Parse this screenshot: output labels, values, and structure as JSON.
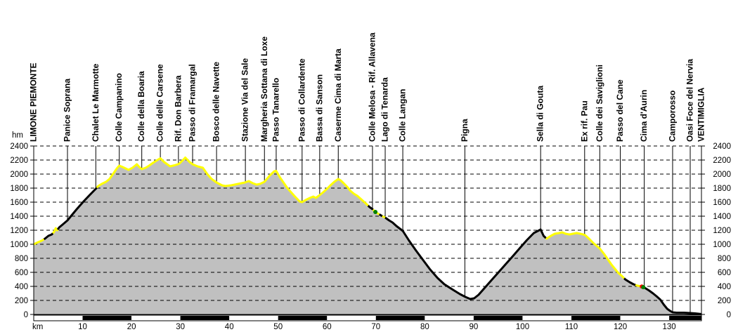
{
  "page": {
    "background": "#ffffff"
  },
  "chart_data": {
    "type": "area",
    "title": "",
    "xlabel": "km",
    "ylabel": "hm",
    "xlim": [
      0,
      136.6
    ],
    "ylim": [
      0,
      2400
    ],
    "yticks": [
      0,
      200,
      400,
      600,
      800,
      1000,
      1200,
      1400,
      1600,
      1800,
      2000,
      2200,
      2400
    ],
    "xticks": [
      10,
      20,
      30,
      40,
      50,
      60,
      70,
      80,
      90,
      100,
      110,
      120,
      130
    ],
    "grid": "horizontal-dashed-over-fill",
    "legend": "none",
    "area_fill": "#c0c0c0",
    "axis_color": "#000000",
    "surface_colors": {
      "unpaved": "#ffff00",
      "paved": "#000000"
    },
    "marker_colors": {
      "green": "#008000",
      "red": "#ff0000"
    },
    "scalebar": {
      "interval_km": 10,
      "even_color": "#ffffff",
      "odd_color": "#000000"
    },
    "waypoints": [
      {
        "label": "LIMONE PIEMONTE",
        "km": 0
      },
      {
        "label": "Panice Soprana",
        "km": 6.9
      },
      {
        "label": "Chalet Le Marmotte",
        "km": 12.7
      },
      {
        "label": "Colle Campanino",
        "km": 17.5
      },
      {
        "label": "Colle della Boaria",
        "km": 22.1
      },
      {
        "label": "Colle delle Carsene",
        "km": 25.9
      },
      {
        "label": "Rif. Don Barbera",
        "km": 29.6
      },
      {
        "label": "Passo di Framargal",
        "km": 32.5
      },
      {
        "label": "Bosco delle Navette",
        "km": 37.4
      },
      {
        "label": "Stazione Via del Sale",
        "km": 43.3
      },
      {
        "label": "Margheria Sottana di Loxe",
        "km": 47.2
      },
      {
        "label": "Passo Tanarello",
        "km": 49.6
      },
      {
        "label": "Passo di Collardente",
        "km": 54.9
      },
      {
        "label": "Bassa di Sanson",
        "km": 58.5
      },
      {
        "label": "Caserme Cima di Marta",
        "km": 62.3
      },
      {
        "label": "Colle Melosa - Rif. Allavena",
        "km": 69.3
      },
      {
        "label": "Lago di Tenarda",
        "km": 71.9
      },
      {
        "label": "Colle Langan",
        "km": 75.5
      },
      {
        "label": "Pigna",
        "km": 88.2
      },
      {
        "label": "Sella di Gouta",
        "km": 103.7
      },
      {
        "label": "Ex rif. Pau",
        "km": 112.7
      },
      {
        "label": "Colle dei Saviglioni",
        "km": 115.8
      },
      {
        "label": "Passo del Cane",
        "km": 120.0
      },
      {
        "label": "Cima d'Aurin",
        "km": 124.9
      },
      {
        "label": "Camporosso",
        "km": 130.7
      },
      {
        "label": "Oasi Foce del Nervia",
        "km": 134.3
      },
      {
        "label": "VENTIMIGLIA",
        "km": 136.6
      }
    ],
    "profile": [
      [
        0,
        1000
      ],
      [
        0.9,
        1030
      ],
      [
        1.6,
        1050
      ],
      [
        2.3,
        1080
      ],
      [
        3.0,
        1120
      ],
      [
        3.7,
        1140
      ],
      [
        4.2,
        1180
      ],
      [
        4.5,
        1230
      ],
      [
        4.8,
        1200
      ],
      [
        5.2,
        1240
      ],
      [
        5.9,
        1280
      ],
      [
        6.9,
        1340
      ],
      [
        7.6,
        1400
      ],
      [
        8.8,
        1500
      ],
      [
        10.2,
        1610
      ],
      [
        11.7,
        1720
      ],
      [
        12.7,
        1790
      ],
      [
        13.2,
        1830
      ],
      [
        13.9,
        1860
      ],
      [
        14.8,
        1890
      ],
      [
        15.5,
        1930
      ],
      [
        16.3,
        2010
      ],
      [
        17.0,
        2080
      ],
      [
        17.5,
        2120
      ],
      [
        18.2,
        2100
      ],
      [
        19.4,
        2060
      ],
      [
        20.2,
        2090
      ],
      [
        21.1,
        2140
      ],
      [
        21.6,
        2100
      ],
      [
        22.1,
        2070
      ],
      [
        22.9,
        2090
      ],
      [
        23.6,
        2120
      ],
      [
        24.4,
        2160
      ],
      [
        25.3,
        2200
      ],
      [
        25.9,
        2225
      ],
      [
        26.7,
        2170
      ],
      [
        27.9,
        2110
      ],
      [
        28.8,
        2125
      ],
      [
        29.7,
        2145
      ],
      [
        30.4,
        2190
      ],
      [
        31.0,
        2235
      ],
      [
        31.9,
        2170
      ],
      [
        32.5,
        2140
      ],
      [
        33.5,
        2110
      ],
      [
        34.6,
        2090
      ],
      [
        35.5,
        2000
      ],
      [
        36.4,
        1930
      ],
      [
        37.4,
        1880
      ],
      [
        38.5,
        1840
      ],
      [
        39.2,
        1830
      ],
      [
        40.4,
        1840
      ],
      [
        41.8,
        1860
      ],
      [
        43.2,
        1880
      ],
      [
        44.0,
        1900
      ],
      [
        44.8,
        1870
      ],
      [
        45.6,
        1850
      ],
      [
        46.3,
        1860
      ],
      [
        47.2,
        1890
      ],
      [
        48.3,
        1980
      ],
      [
        49.2,
        2040
      ],
      [
        49.6,
        2045
      ],
      [
        50.4,
        1950
      ],
      [
        51.9,
        1800
      ],
      [
        53.3,
        1690
      ],
      [
        54.4,
        1610
      ],
      [
        54.9,
        1600
      ],
      [
        55.6,
        1630
      ],
      [
        56.5,
        1660
      ],
      [
        57.2,
        1680
      ],
      [
        57.7,
        1660
      ],
      [
        58.5,
        1700
      ],
      [
        59.2,
        1740
      ],
      [
        60.0,
        1790
      ],
      [
        60.7,
        1840
      ],
      [
        61.5,
        1890
      ],
      [
        62.3,
        1930
      ],
      [
        62.8,
        1910
      ],
      [
        63.4,
        1870
      ],
      [
        64.1,
        1820
      ],
      [
        64.8,
        1760
      ],
      [
        65.5,
        1720
      ],
      [
        66.2,
        1690
      ],
      [
        67.0,
        1640
      ],
      [
        67.8,
        1590
      ],
      [
        68.7,
        1530
      ],
      [
        69.3,
        1500
      ],
      [
        69.9,
        1460
      ],
      [
        70.6,
        1430
      ],
      [
        71.3,
        1400
      ],
      [
        71.9,
        1380
      ],
      [
        72.7,
        1340
      ],
      [
        73.4,
        1310
      ],
      [
        74.2,
        1260
      ],
      [
        75.5,
        1190
      ],
      [
        76.8,
        1050
      ],
      [
        78.2,
        910
      ],
      [
        79.7,
        770
      ],
      [
        81.1,
        640
      ],
      [
        82.6,
        520
      ],
      [
        84.0,
        430
      ],
      [
        85.8,
        350
      ],
      [
        87.2,
        290
      ],
      [
        88.3,
        250
      ],
      [
        89.3,
        220
      ],
      [
        90.1,
        230
      ],
      [
        91.0,
        280
      ],
      [
        92.4,
        390
      ],
      [
        93.8,
        500
      ],
      [
        95.2,
        610
      ],
      [
        96.6,
        720
      ],
      [
        98.0,
        830
      ],
      [
        99.5,
        950
      ],
      [
        100.9,
        1060
      ],
      [
        102.3,
        1160
      ],
      [
        103.7,
        1210
      ],
      [
        104.3,
        1120
      ],
      [
        104.9,
        1080
      ],
      [
        105.8,
        1120
      ],
      [
        106.6,
        1150
      ],
      [
        107.5,
        1160
      ],
      [
        108.1,
        1170
      ],
      [
        108.8,
        1150
      ],
      [
        109.6,
        1140
      ],
      [
        110.3,
        1150
      ],
      [
        111.1,
        1160
      ],
      [
        111.8,
        1150
      ],
      [
        112.4,
        1140
      ],
      [
        112.8,
        1130
      ],
      [
        113.6,
        1080
      ],
      [
        114.6,
        1010
      ],
      [
        115.8,
        940
      ],
      [
        116.7,
        860
      ],
      [
        117.5,
        780
      ],
      [
        118.2,
        710
      ],
      [
        118.9,
        650
      ],
      [
        119.6,
        590
      ],
      [
        120.3,
        550
      ],
      [
        121.0,
        500
      ],
      [
        121.9,
        460
      ],
      [
        122.7,
        430
      ],
      [
        123.5,
        410
      ],
      [
        124.3,
        400
      ],
      [
        125.0,
        380
      ],
      [
        125.9,
        340
      ],
      [
        126.7,
        300
      ],
      [
        127.4,
        260
      ],
      [
        128.2,
        210
      ],
      [
        128.9,
        140
      ],
      [
        129.6,
        80
      ],
      [
        130.2,
        50
      ],
      [
        130.7,
        30
      ],
      [
        131.5,
        25
      ],
      [
        133.0,
        25
      ],
      [
        134.3,
        20
      ],
      [
        135.3,
        15
      ],
      [
        136.0,
        10
      ],
      [
        136.6,
        5
      ]
    ],
    "surface_segments": [
      {
        "from": 0,
        "to": 2.1,
        "surface": "unpaved"
      },
      {
        "from": 2.1,
        "to": 3.9,
        "surface": "paved"
      },
      {
        "from": 3.9,
        "to": 4.9,
        "surface": "unpaved"
      },
      {
        "from": 4.9,
        "to": 12.9,
        "surface": "paved"
      },
      {
        "from": 12.9,
        "to": 68.4,
        "surface": "unpaved"
      },
      {
        "from": 68.4,
        "to": 69.4,
        "surface": "paved"
      },
      {
        "from": 69.4,
        "to": 70.7,
        "surface": "unpaved"
      },
      {
        "from": 70.7,
        "to": 71.3,
        "surface": "paved"
      },
      {
        "from": 71.3,
        "to": 71.9,
        "surface": "unpaved"
      },
      {
        "from": 71.9,
        "to": 104.8,
        "surface": "paved"
      },
      {
        "from": 104.8,
        "to": 120.8,
        "surface": "unpaved"
      },
      {
        "from": 120.8,
        "to": 123.1,
        "surface": "paved"
      },
      {
        "from": 123.1,
        "to": 124.2,
        "surface": "unpaved"
      },
      {
        "from": 124.2,
        "to": 136.6,
        "surface": "paved"
      }
    ],
    "markers": [
      {
        "km": 69.9,
        "color": "#008000"
      },
      {
        "km": 124.4,
        "color": "#ff0000"
      },
      {
        "km": 124.7,
        "color": "#008000"
      }
    ]
  }
}
